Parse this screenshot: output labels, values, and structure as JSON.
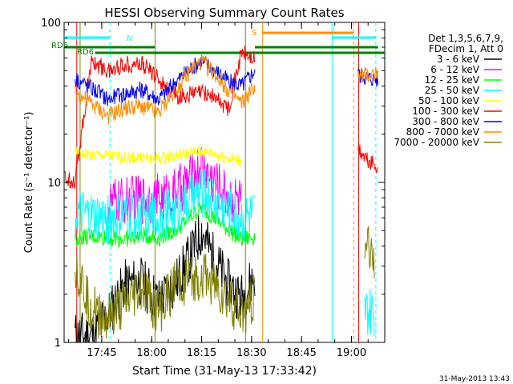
{
  "chart_data": {
    "type": "line",
    "title": "HESSI Observing Summary Count Rates",
    "xlabel": "Start Time (31-May-13 17:33:42)",
    "ylabel": "Count Rate (s⁻¹ detector⁻¹)",
    "y_scale": "log",
    "ylim": [
      1,
      100
    ],
    "xlim": [
      "17:33:42",
      "19:10:00"
    ],
    "x_ticks": [
      "17:45",
      "18:00",
      "18:15",
      "18:30",
      "18:45",
      "19:00"
    ],
    "y_ticks": [
      "1",
      "10",
      "100"
    ],
    "legend_header": [
      "Det 1,3,5,6,7,9,",
      "FDecim 1, Att 0"
    ],
    "legend_position": "right",
    "series": [
      {
        "name": "3 - 6 keV",
        "color": "#000000",
        "x": [
          "17:37",
          "17:42",
          "17:47",
          "17:52",
          "17:57",
          "18:02",
          "18:07",
          "18:12",
          "18:15",
          "18:18",
          "18:23",
          "18:27",
          "18:31"
        ],
        "y": [
          1.1,
          1.1,
          1.5,
          2.3,
          2.4,
          1.8,
          2.3,
          3.6,
          5.0,
          3.6,
          2.3,
          1.9,
          2.6
        ]
      },
      {
        "name": "6 - 12 keV",
        "color": "#ff00ff",
        "x": [
          "17:47",
          "17:52",
          "17:57",
          "18:02",
          "18:07",
          "18:12",
          "18:15",
          "18:18",
          "18:23",
          "18:27"
        ],
        "y": [
          7.4,
          7.6,
          7.9,
          7.9,
          8.5,
          10.8,
          12.5,
          10.5,
          8.2,
          7.6
        ]
      },
      {
        "name": "12 - 25 keV",
        "color": "#00ff00",
        "x": [
          "17:37",
          "17:42",
          "17:47",
          "17:52",
          "17:57",
          "18:02",
          "18:07",
          "18:12",
          "18:15",
          "18:18",
          "18:23",
          "18:27",
          "18:31"
        ],
        "y": [
          4.5,
          4.6,
          4.5,
          4.4,
          4.7,
          4.5,
          5.0,
          6.2,
          7.0,
          6.2,
          5.1,
          4.4,
          4.6
        ]
      },
      {
        "name": "25 - 50 keV",
        "color": "#00ffff",
        "x": [
          "17:37",
          "17:42",
          "17:47",
          "17:52",
          "17:57",
          "18:02",
          "18:07",
          "18:12",
          "18:15",
          "18:18",
          "18:23",
          "18:27",
          "18:31",
          "19:04",
          "19:07"
        ],
        "y": [
          6.2,
          6.0,
          5.9,
          6.0,
          6.1,
          6.0,
          6.6,
          8.0,
          8.7,
          8.0,
          6.7,
          6.0,
          6.2,
          1.5,
          1.5
        ]
      },
      {
        "name": "50 - 100 keV",
        "color": "#ffff00",
        "x": [
          "17:37",
          "17:42",
          "17:47",
          "17:52",
          "17:57",
          "18:02",
          "18:07",
          "18:12",
          "18:15",
          "18:18",
          "18:23",
          "18:27"
        ],
        "y": [
          15.5,
          14.8,
          14.7,
          14.3,
          14.3,
          14.1,
          14.6,
          15.2,
          15.6,
          15.2,
          14.2,
          13.5
        ]
      },
      {
        "name": "100 - 300 keV",
        "color": "#ff0000",
        "x": [
          "17:34",
          "17:37",
          "17:42",
          "17:47",
          "17:52",
          "17:57",
          "18:02",
          "18:07",
          "18:12",
          "18:15",
          "18:18",
          "18:23",
          "18:27",
          "18:31",
          "19:02",
          "19:05",
          "19:08"
        ],
        "y": [
          10.5,
          10.4,
          57.5,
          49.5,
          55,
          55,
          45,
          34,
          35.5,
          36.5,
          35,
          29,
          65,
          58,
          16,
          13.5,
          12.6
        ]
      },
      {
        "name": "300 - 800 keV",
        "color": "#0000ff",
        "x": [
          "17:37",
          "17:42",
          "17:47",
          "17:52",
          "17:57",
          "18:02",
          "18:07",
          "18:12",
          "18:15",
          "18:18",
          "18:23",
          "18:27",
          "18:31",
          "19:02",
          "19:05",
          "19:08"
        ],
        "y": [
          45,
          39,
          33,
          36,
          38,
          33,
          42,
          52,
          57,
          52,
          43,
          40,
          50,
          47,
          45,
          44
        ]
      },
      {
        "name": "800 - 7000 keV",
        "color": "#ff8c00",
        "x": [
          "17:37",
          "17:42",
          "17:47",
          "17:52",
          "17:57",
          "18:02",
          "18:07",
          "18:12",
          "18:15",
          "18:18",
          "18:23",
          "18:27",
          "18:31",
          "19:02",
          "19:05",
          "19:08"
        ],
        "y": [
          37,
          31,
          26,
          29,
          30,
          27,
          38,
          51,
          57,
          50,
          38,
          31,
          40,
          45,
          47,
          48
        ]
      },
      {
        "name": "7000 - 20000 keV",
        "color": "#808000",
        "x": [
          "17:37",
          "17:42",
          "17:47",
          "17:52",
          "17:57",
          "18:02",
          "18:07",
          "18:12",
          "18:15",
          "18:18",
          "18:23",
          "18:27",
          "18:31",
          "19:04",
          "19:07"
        ],
        "y": [
          3.1,
          1.6,
          1.4,
          1.7,
          2.2,
          1.5,
          2.3,
          2.5,
          2.6,
          2.4,
          1.8,
          1.5,
          2.0,
          4.2,
          3.5
        ]
      }
    ],
    "flag_bars": [
      {
        "label": "RD6",
        "color": "#008000"
      },
      {
        "label": "RD6",
        "color": "#008000"
      },
      {
        "label": "N",
        "color": "#00ffff"
      },
      {
        "label": "S",
        "color": "#ff8c00"
      }
    ],
    "footer_timestamp": "31-May-2013 13:43"
  }
}
